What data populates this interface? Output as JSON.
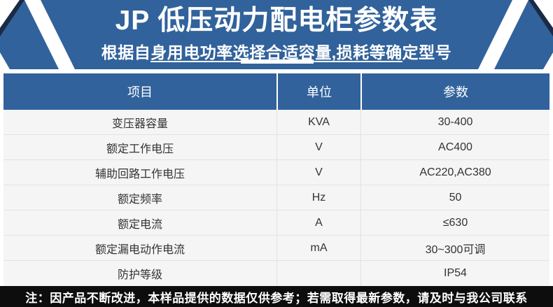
{
  "header": {
    "title": "JP 低压动力配电柜参数表",
    "subtitle": "根据自身用电功率选择合适容量,损耗等确定型号"
  },
  "table": {
    "columns": [
      "项目",
      "单位",
      "参数"
    ],
    "rows": [
      {
        "item": "变压器容量",
        "unit": "KVA",
        "value": "30-400"
      },
      {
        "item": "额定工作电压",
        "unit": "V",
        "value": "AC400"
      },
      {
        "item": "辅助回路工作电压",
        "unit": "V",
        "value": "AC220,AC380"
      },
      {
        "item": "额定频率",
        "unit": "Hz",
        "value": "50"
      },
      {
        "item": "额定电流",
        "unit": "A",
        "value": "≤630"
      },
      {
        "item": "额定漏电动作电流",
        "unit": "mA",
        "value": "30~300可调"
      },
      {
        "item": "防护等级",
        "unit": "",
        "value": "IP54"
      }
    ]
  },
  "footer": {
    "note": "注：因产品不断改进，本样品提供的数据仅供参考；若需取得最新参数，请及时与我公司联系"
  },
  "colors": {
    "banner_blue": "#31629b",
    "navy_accent": "#1b2a45",
    "row_bg": "#f5f5f6",
    "row_border": "#e2e2e3",
    "footer_bg": "#0d0d0d",
    "text_dark": "#333333",
    "white": "#ffffff"
  }
}
